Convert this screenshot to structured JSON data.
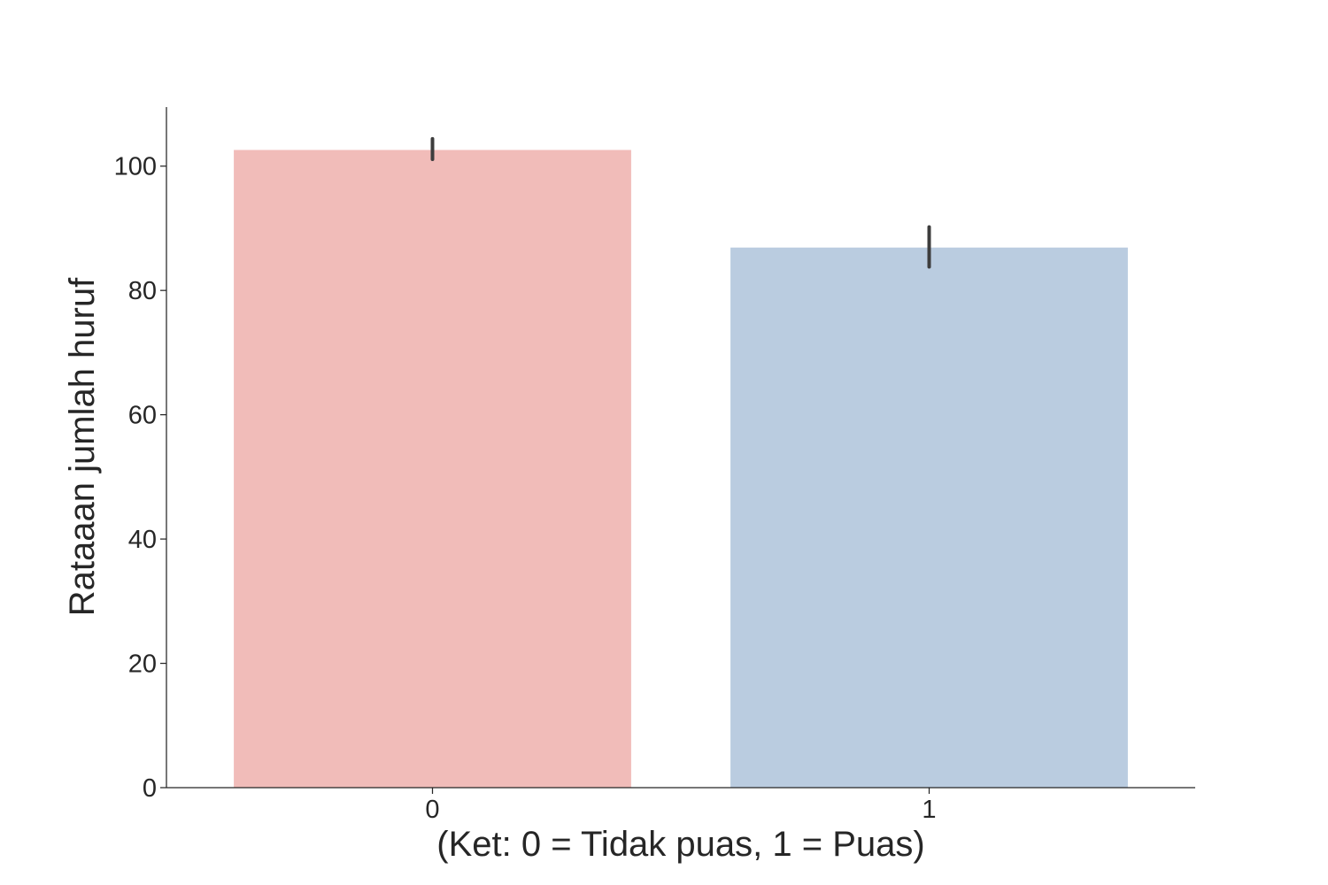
{
  "chart_data": {
    "type": "bar",
    "categories": [
      "0",
      "1"
    ],
    "values": [
      102.6,
      86.9
    ],
    "error_low": [
      101.1,
      83.8
    ],
    "error_high": [
      104.4,
      90.2
    ],
    "colors": [
      "#f1bcb9",
      "#bacce0"
    ],
    "xlabel": "(Ket: 0 = Tidak puas, 1 = Puas)",
    "ylabel": "Rataaan jumlah huruf",
    "ylim": [
      0,
      109.5
    ],
    "yticks": [
      0,
      20,
      40,
      60,
      80,
      100
    ],
    "grid": false,
    "legend": "none"
  }
}
